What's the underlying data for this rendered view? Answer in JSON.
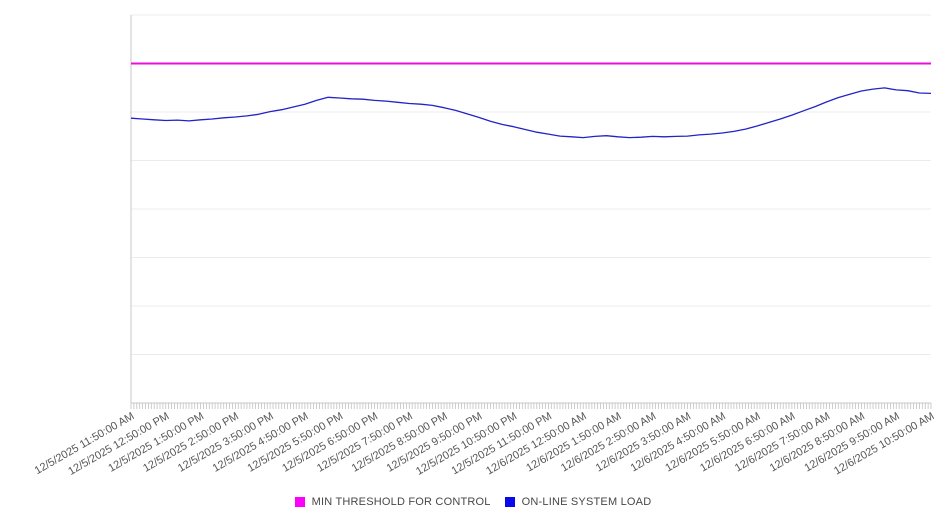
{
  "chart_data": {
    "type": "line",
    "title": "",
    "xlabel": "",
    "ylabel": "",
    "ylim": [
      0,
      100
    ],
    "grid_divisions": 8,
    "grid": true,
    "y_tick_labels_visible": false,
    "minor_tick_count": 277,
    "legend_position": "bottom",
    "x_labels": [
      "12/5/2025 11:50:00 AM",
      "12/5/2025 12:50:00 PM",
      "12/5/2025 1:50:00 PM",
      "12/5/2025 2:50:00 PM",
      "12/5/2025 3:50:00 PM",
      "12/5/2025 4:50:00 PM",
      "12/5/2025 5:50:00 PM",
      "12/5/2025 6:50:00 PM",
      "12/5/2025 7:50:00 PM",
      "12/5/2025 8:50:00 PM",
      "12/5/2025 9:50:00 PM",
      "12/5/2025 10:50:00 PM",
      "12/5/2025 11:50:00 PM",
      "12/6/2025 12:50:00 AM",
      "12/6/2025 1:50:00 AM",
      "12/6/2025 2:50:00 AM",
      "12/6/2025 3:50:00 AM",
      "12/6/2025 4:50:00 AM",
      "12/6/2025 5:50:00 AM",
      "12/6/2025 6:50:00 AM",
      "12/6/2025 7:50:00 AM",
      "12/6/2025 8:50:00 AM",
      "12/6/2025 9:50:00 AM",
      "12/6/2025 10:50:00 AM"
    ],
    "series": [
      {
        "name": "MIN THRESHOLD FOR CONTROL",
        "kind": "threshold",
        "value": 87.5,
        "line_color": "#ea0edf",
        "legend_color": "#fb00fb"
      },
      {
        "name": "ON-LINE SYSTEM LOAD",
        "kind": "line",
        "line_color": "#2323c6",
        "legend_color": "#0909ec",
        "values": [
          73.4,
          73.2,
          73.0,
          72.8,
          72.9,
          72.7,
          73.0,
          73.2,
          73.5,
          73.7,
          74.0,
          74.4,
          75.1,
          75.6,
          76.3,
          77.0,
          78.0,
          78.8,
          78.6,
          78.4,
          78.3,
          78.0,
          77.8,
          77.5,
          77.2,
          77.0,
          76.7,
          76.1,
          75.4,
          74.5,
          73.6,
          72.6,
          71.8,
          71.2,
          70.5,
          69.8,
          69.3,
          68.8,
          68.6,
          68.4,
          68.7,
          68.9,
          68.6,
          68.4,
          68.5,
          68.7,
          68.6,
          68.7,
          68.8,
          69.1,
          69.3,
          69.6,
          70.0,
          70.6,
          71.4,
          72.3,
          73.2,
          74.2,
          75.3,
          76.4,
          77.6,
          78.7,
          79.6,
          80.4,
          80.9,
          81.2,
          80.7,
          80.5,
          79.9,
          79.8
        ]
      }
    ]
  }
}
